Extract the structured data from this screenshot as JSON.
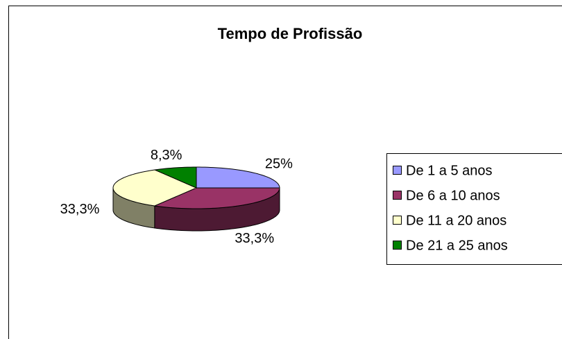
{
  "chart_data": {
    "type": "pie",
    "title": "Tempo de Profissão",
    "categories": [
      "De 1 a 5 anos",
      "De 6 a 10 anos",
      "De 11 a 20 anos",
      "De 21 a 25 anos"
    ],
    "values": [
      25,
      33.3,
      33.3,
      8.3
    ],
    "value_labels": [
      "25%",
      "33,3%",
      "33,3%",
      "8,3%"
    ],
    "colors": [
      "#9999ff",
      "#993366",
      "#ffffcc",
      "#008000"
    ],
    "legend": "right"
  }
}
